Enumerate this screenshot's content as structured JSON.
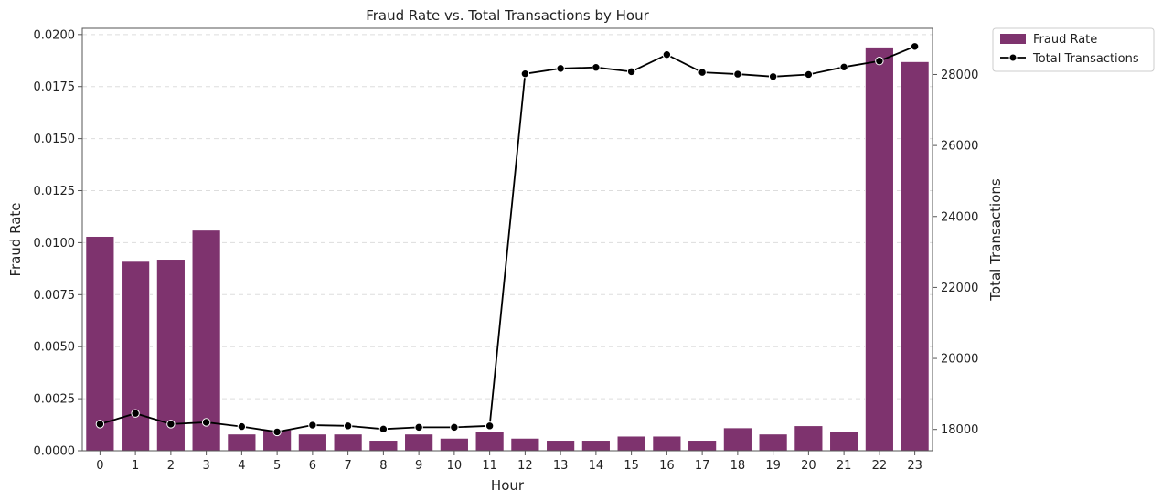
{
  "chart_data": {
    "type": "bar",
    "title": "Fraud Rate vs. Total Transactions by Hour",
    "xlabel": "Hour",
    "ylabel": "Fraud Rate",
    "y2label": "Total Transactions",
    "categories": [
      "0",
      "1",
      "2",
      "3",
      "4",
      "5",
      "6",
      "7",
      "8",
      "9",
      "10",
      "11",
      "12",
      "13",
      "14",
      "15",
      "16",
      "17",
      "18",
      "19",
      "20",
      "21",
      "22",
      "23"
    ],
    "ylim": [
      0,
      0.0203
    ],
    "y_ticks": [
      "0.0000",
      "0.0025",
      "0.0050",
      "0.0075",
      "0.0100",
      "0.0125",
      "0.0150",
      "0.0175",
      "0.0200"
    ],
    "y2lim": [
      17400,
      29300
    ],
    "y2_ticks": [
      "18000",
      "20000",
      "22000",
      "24000",
      "26000",
      "28000"
    ],
    "grid": "horizontal dashed",
    "legend": "outside-top-right",
    "series": [
      {
        "name": "Fraud Rate",
        "type": "bar",
        "axis": "left",
        "color": "#7e336e",
        "values": [
          0.0103,
          0.0091,
          0.0092,
          0.0106,
          0.0008,
          0.001,
          0.0008,
          0.0008,
          0.0005,
          0.0008,
          0.0006,
          0.0009,
          0.0006,
          0.0005,
          0.0005,
          0.0007,
          0.0007,
          0.0005,
          0.0011,
          0.0008,
          0.0012,
          0.0009,
          0.0194,
          0.0187
        ]
      },
      {
        "name": "Total Transactions",
        "type": "line",
        "axis": "right",
        "color": "#000000",
        "values": [
          18150,
          18450,
          18150,
          18200,
          18080,
          17930,
          18120,
          18100,
          18010,
          18060,
          18060,
          18100,
          28020,
          28170,
          28200,
          28080,
          28560,
          28060,
          28010,
          27940,
          28000,
          28210,
          28380,
          28790
        ]
      }
    ]
  }
}
